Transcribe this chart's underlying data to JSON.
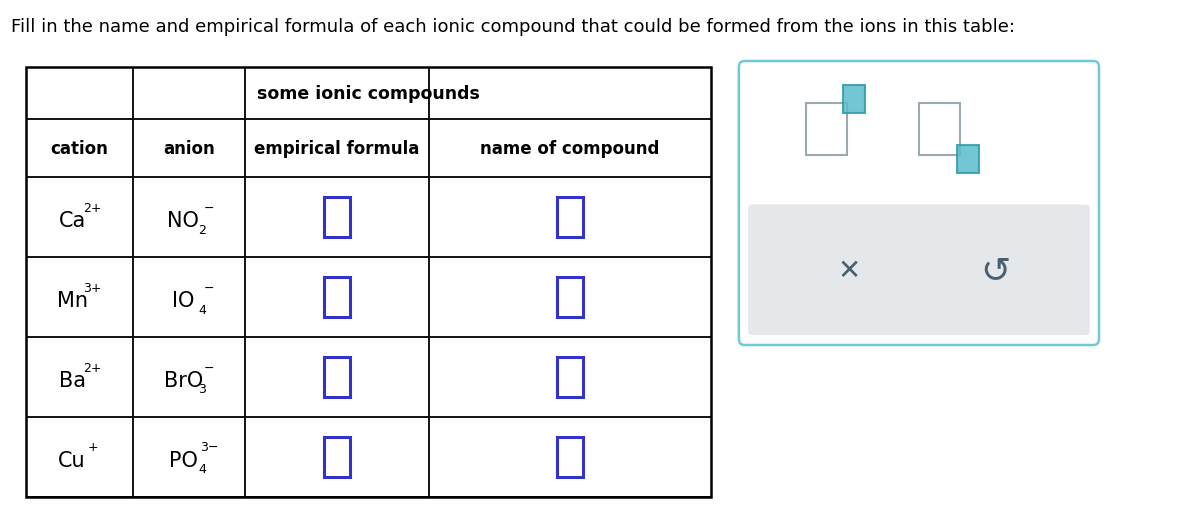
{
  "title_text": "Fill in the name and empirical formula of each ionic compound that could be formed from the ions in this table:",
  "table_title": "some ionic compounds",
  "col_headers": [
    "cation",
    "anion",
    "empirical formula",
    "name of compound"
  ],
  "rows": [
    {
      "cation": "Ca",
      "cation_charge": "2+",
      "anion_main": "NO",
      "anion_sub": "2",
      "anion_charge": "−"
    },
    {
      "cation": "Mn",
      "cation_charge": "3+",
      "anion_main": "IO",
      "anion_sub": "4",
      "anion_charge": "−"
    },
    {
      "cation": "Ba",
      "cation_charge": "2+",
      "anion_main": "BrO",
      "anion_sub": "3",
      "anion_charge": "−"
    },
    {
      "cation": "Cu",
      "cation_charge": "+",
      "anion_main": "PO",
      "anion_sub": "4",
      "anion_charge": "3−"
    }
  ],
  "box_color": "#3333cc",
  "teal_fill": "#5bbccc",
  "teal_border": "#2e9aaa",
  "gray_border": "#888888",
  "panel_border": "#6ecad8",
  "panel_bg": "#e4e8ea",
  "background_color": "#ffffff",
  "text_color": "#000000"
}
